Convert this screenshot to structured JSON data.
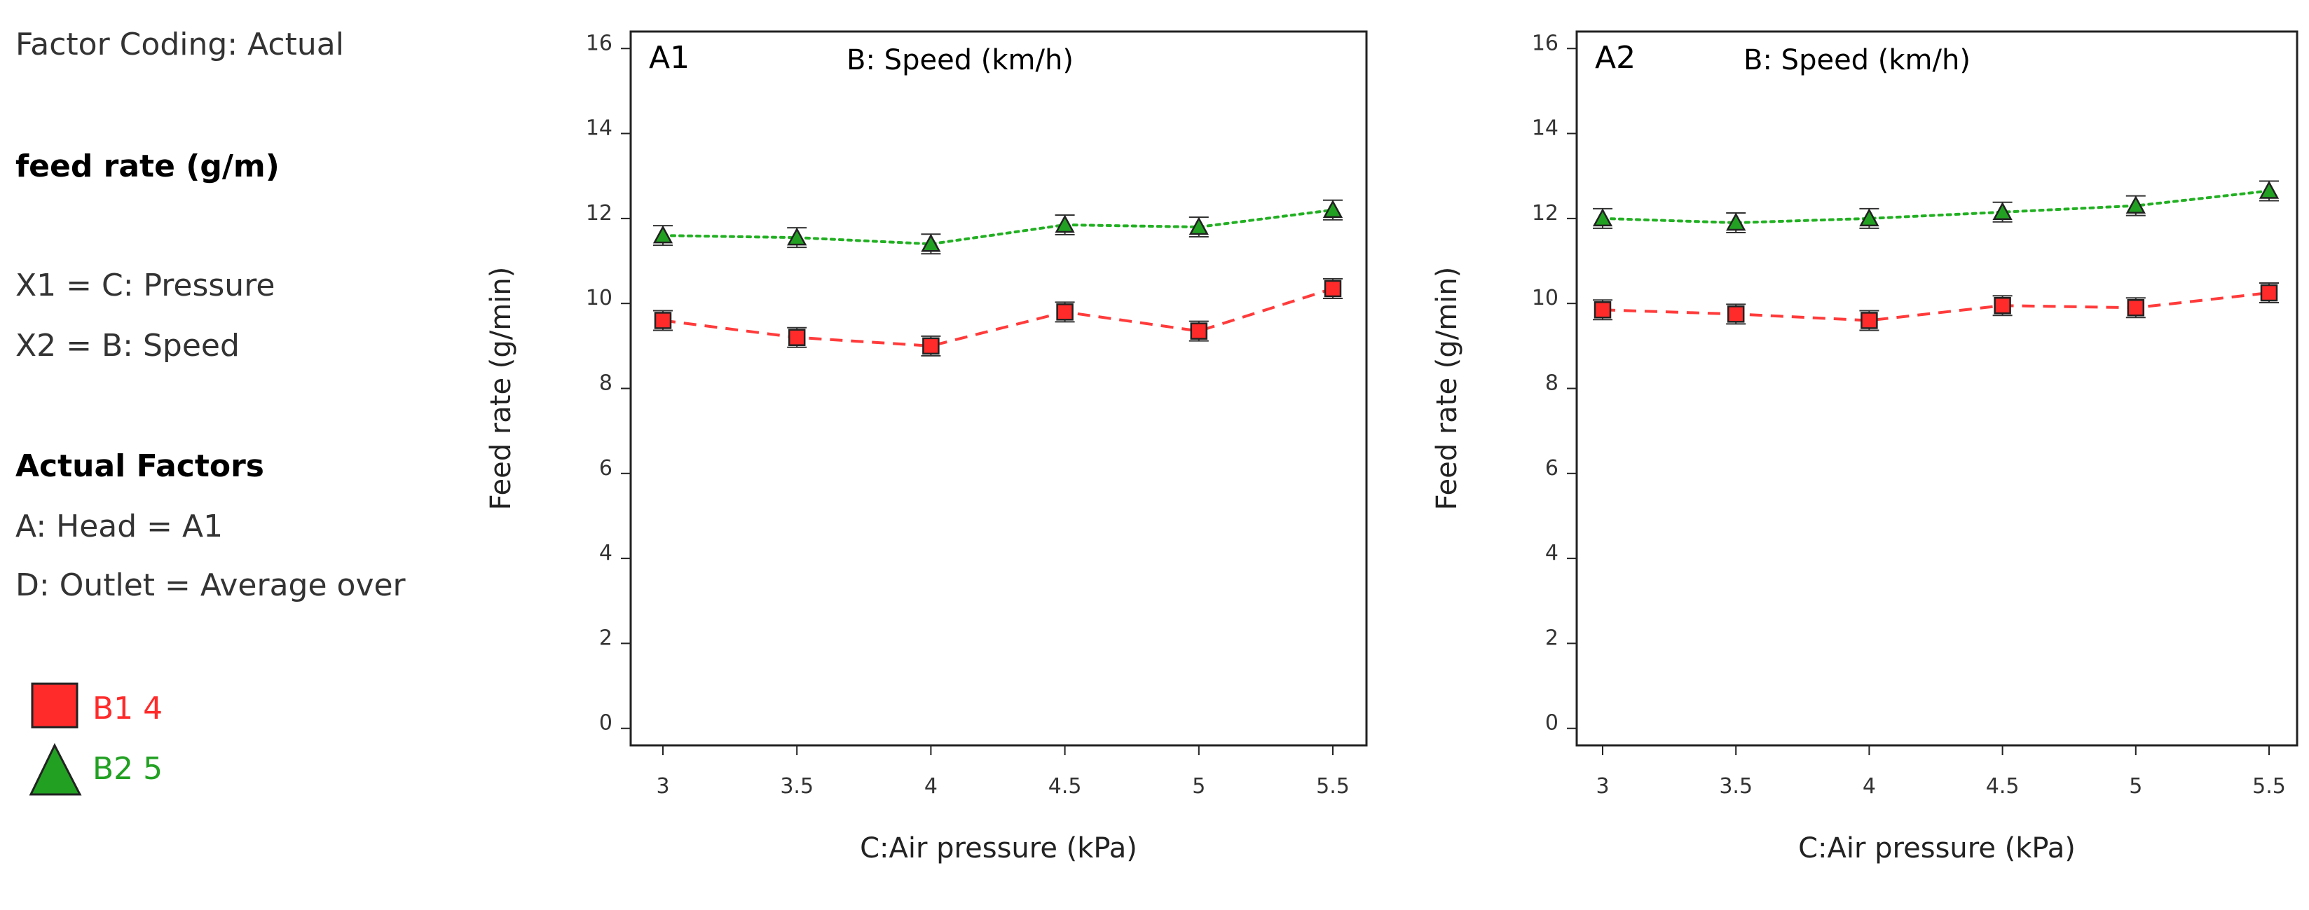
{
  "left_panel": {
    "factor_coding": "Factor Coding: Actual",
    "response_title": "feed rate (g/m)",
    "x1": "X1 = C: Pressure",
    "x2": "X2 = B: Speed",
    "actual_factors_heading": "Actual Factors",
    "factor_a": "A: Head = A1",
    "factor_d": "D: Outlet = Average over",
    "legend": [
      {
        "label": "B1 4",
        "marker": "square-icon",
        "color": "#ff2a2a"
      },
      {
        "label": "B2 5",
        "marker": "triangle-icon",
        "color": "#22a022"
      }
    ]
  },
  "colors": {
    "b1": "#ff2a2a",
    "b2": "#22a022",
    "b1_line": "#ff3b3b",
    "b2_line": "#22b022"
  },
  "chart_data": [
    {
      "type": "line",
      "panel_label": "A1",
      "title": "B: Speed (km/h)",
      "xlabel": "C:Air pressure (kPa)",
      "ylabel": "Feed rate (g/min)",
      "x": [
        3,
        3.5,
        4,
        4.5,
        5,
        5.5
      ],
      "x_ticks": [
        "3",
        "3.5",
        "4",
        "4.5",
        "5",
        "5.5"
      ],
      "y_ticks": [
        "0",
        "2",
        "4",
        "6",
        "8",
        "10",
        "12",
        "14",
        "16"
      ],
      "ylim": [
        -0.4,
        16.4
      ],
      "series": [
        {
          "name": "B1 4",
          "marker": "square",
          "line": "dashed",
          "values": [
            9.6,
            9.2,
            9.0,
            9.8,
            9.35,
            10.35
          ]
        },
        {
          "name": "B2 5",
          "marker": "triangle",
          "line": "dotted",
          "values": [
            11.6,
            11.55,
            11.4,
            11.85,
            11.8,
            12.2
          ]
        }
      ]
    },
    {
      "type": "line",
      "panel_label": "A2",
      "title": "B: Speed (km/h)",
      "xlabel": "C:Air pressure (kPa)",
      "ylabel": "Feed rate (g/min)",
      "x": [
        3,
        3.5,
        4,
        4.5,
        5,
        5.5
      ],
      "x_ticks": [
        "3",
        "3.5",
        "4",
        "4.5",
        "5",
        "5.5"
      ],
      "y_ticks": [
        "0",
        "2",
        "4",
        "6",
        "8",
        "10",
        "12",
        "14",
        "16"
      ],
      "ylim": [
        -0.4,
        16.4
      ],
      "series": [
        {
          "name": "B1 4",
          "marker": "square",
          "line": "dashed",
          "values": [
            9.85,
            9.75,
            9.6,
            9.95,
            9.9,
            10.25
          ]
        },
        {
          "name": "B2 5",
          "marker": "triangle",
          "line": "dotted",
          "values": [
            12.0,
            11.9,
            12.0,
            12.15,
            12.3,
            12.65
          ]
        }
      ]
    }
  ]
}
